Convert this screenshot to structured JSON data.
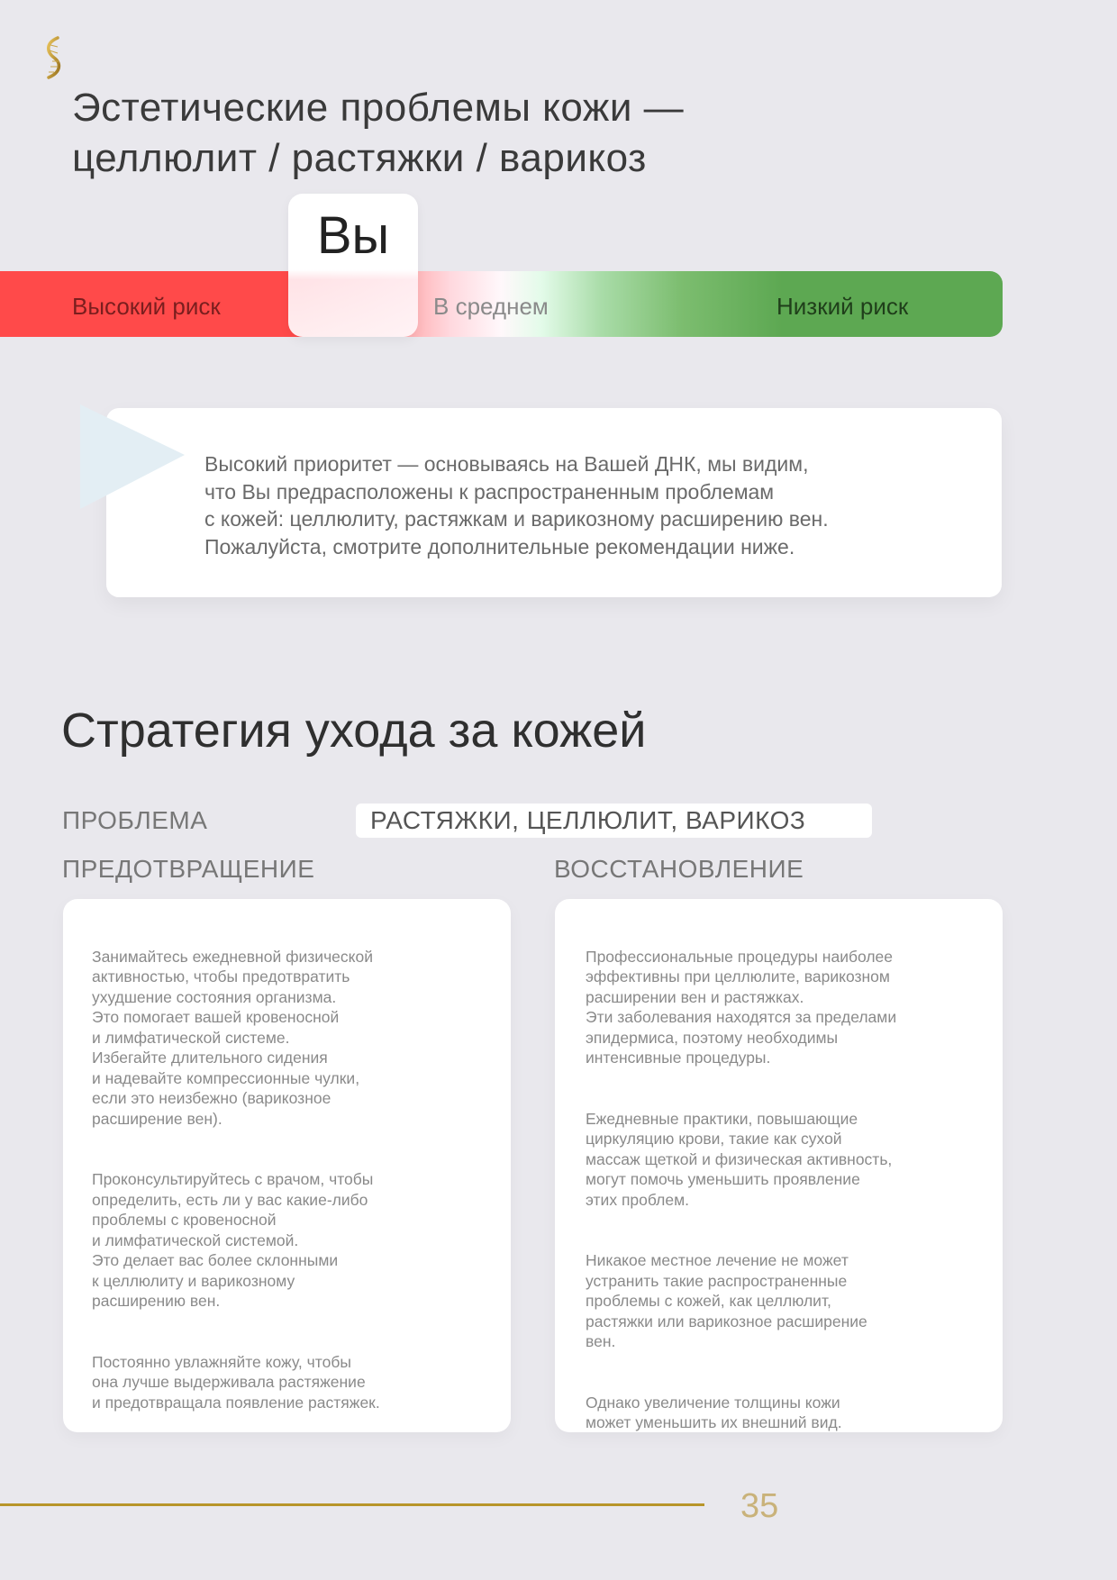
{
  "colors": {
    "high": "#ff4a4a",
    "low": "#5da852",
    "accent_gold": "#b8952a",
    "background": "#e9e8ed"
  },
  "logo": {
    "icon": "dna-helix-icon"
  },
  "title": "Эстетические проблемы кожи —\nцеллюлит / растяжки / варикоз",
  "risk_scale": {
    "you_label": "Вы",
    "high_label": "Высокий риск",
    "mid_label": "В среднем",
    "low_label": "Низкий риск",
    "position": "high-to-average boundary"
  },
  "callout": {
    "icon": "triangle-pointer-icon",
    "text": "Высокий приоритет — основываясь на Вашей ДНК, мы видим,\nчто Вы предрасположены к распространенным проблемам\nс кожей: целлюлиту, растяжкам и варикозному расширению вен.\nПожалуйста, смотрите дополнительные рекомендации ниже."
  },
  "strategy": {
    "heading": "Стратегия ухода за кожей",
    "problem_label": "ПРОБЛЕМА",
    "problem_value": "РАСТЯЖКИ, ЦЕЛЛЮЛИТ, ВАРИКОЗ",
    "prevention": {
      "label": "ПРЕДОТВРАЩЕНИЕ",
      "paragraphs": [
        "Занимайтесь ежедневной физической\nактивностью, чтобы предотвратить\nухудшение состояния организма.\nЭто помогает вашей кровеносной\nи лимфатической системе.\nИзбегайте длительного сидения\nи надевайте компрессионные чулки,\nесли это неизбежно (варикозное\nрасширение вен).",
        "Проконсультируйтесь с врачом, чтобы\nопределить, есть ли у вас какие-либо\nпроблемы с кровеносной\nи лимфатической системой.\nЭто делает вас более склонными\nк целлюлиту и варикозному\nрасширению вен.",
        "Постоянно увлажняйте кожу, чтобы\nона лучше выдерживала растяжение\nи предотвращала появление растяжек."
      ]
    },
    "recovery": {
      "label": "ВОССТАНОВЛЕНИЕ",
      "paragraphs": [
        "Профессиональные процедуры наиболее\nэффективны при целлюлите, варикозном\nрасширении вен и растяжках.\nЭти заболевания находятся за пределами\nэпидермиса, поэтому необходимы\nинтенсивные процедуры.",
        "Ежедневные практики, повышающие\nциркуляцию крови, такие как сухой\nмассаж щеткой и физическая активность,\nмогут помочь уменьшить проявление\nэтих проблем.",
        "Никакое местное лечение не может\nустранить такие распространенные\nпроблемы с кожей, как целлюлит,\nрастяжки или варикозное расширение\nвен.",
        "Однако увеличение толщины кожи\nможет уменьшить их внешний вид."
      ]
    }
  },
  "footer": {
    "page_number": "35"
  }
}
